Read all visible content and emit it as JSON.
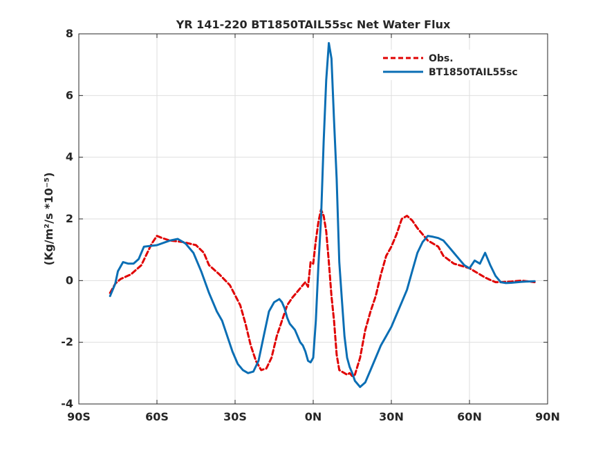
{
  "chart_data": {
    "type": "line",
    "title": "YR 141-220 BT1850TAIL55sc  Net Water Flux",
    "ylabel": "(Kg/m²/s *10⁻⁵)",
    "xlim": [
      -90,
      90
    ],
    "ylim": [
      -4,
      8
    ],
    "x_ticks": [
      -90,
      -60,
      -30,
      0,
      30,
      60,
      90
    ],
    "x_tick_labels": [
      "90S",
      "60S",
      "30S",
      "0N",
      "30N",
      "60N",
      "90N"
    ],
    "y_ticks": [
      -4,
      -2,
      0,
      2,
      4,
      6,
      8
    ],
    "y_tick_labels": [
      "-4",
      "-2",
      "0",
      "2",
      "4",
      "6",
      "8"
    ],
    "grid": true,
    "legend_position": "top-right",
    "series": [
      {
        "name": "Obs.",
        "color": "#e00000",
        "style": "dashed",
        "x": [
          -78,
          -76,
          -74,
          -70,
          -66,
          -62,
          -60,
          -58,
          -55,
          -50,
          -45,
          -42,
          -40,
          -36,
          -32,
          -28,
          -26,
          -24,
          -22,
          -20,
          -18,
          -16,
          -14,
          -12,
          -10,
          -8,
          -6,
          -4,
          -3,
          -2,
          -1,
          0,
          1,
          2,
          3,
          4,
          5,
          6,
          7,
          8,
          9,
          10,
          11,
          12,
          13,
          14,
          15,
          16,
          18,
          20,
          22,
          24,
          26,
          28,
          30,
          32,
          34,
          36,
          38,
          40,
          42,
          44,
          46,
          48,
          50,
          54,
          58,
          60,
          62,
          64,
          66,
          68,
          70,
          72,
          74,
          76,
          80,
          85
        ],
        "y": [
          -0.4,
          -0.1,
          0.05,
          0.2,
          0.5,
          1.2,
          1.45,
          1.38,
          1.3,
          1.25,
          1.15,
          0.9,
          0.5,
          0.2,
          -0.15,
          -0.8,
          -1.4,
          -2.1,
          -2.6,
          -2.9,
          -2.85,
          -2.5,
          -1.8,
          -1.3,
          -0.8,
          -0.55,
          -0.35,
          -0.15,
          -0.05,
          -0.2,
          0.6,
          0.55,
          1.3,
          1.9,
          2.3,
          2.1,
          1.6,
          0.6,
          -0.5,
          -1.3,
          -2.4,
          -2.9,
          -2.95,
          -3.0,
          -3.05,
          -3.0,
          -3.1,
          -3.05,
          -2.5,
          -1.6,
          -1.0,
          -0.5,
          0.2,
          0.8,
          1.1,
          1.5,
          2.0,
          2.1,
          1.95,
          1.7,
          1.5,
          1.3,
          1.2,
          1.1,
          0.8,
          0.55,
          0.45,
          0.4,
          0.3,
          0.2,
          0.1,
          0.02,
          -0.05,
          -0.05,
          -0.04,
          -0.03,
          0.0,
          -0.05
        ]
      },
      {
        "name": "BT1850TAIL55sc",
        "color": "#0a6eb4",
        "style": "solid",
        "x": [
          -78,
          -76,
          -75,
          -73,
          -71,
          -69,
          -67,
          -65,
          -60,
          -55,
          -52,
          -49,
          -46,
          -43,
          -40,
          -37,
          -35,
          -33,
          -31,
          -29,
          -27,
          -25,
          -23,
          -21,
          -19,
          -17,
          -15,
          -13,
          -12,
          -11,
          -10,
          -9,
          -8,
          -7,
          -6,
          -5,
          -4,
          -3,
          -2,
          -1,
          0,
          1,
          2,
          3,
          4,
          5,
          6,
          7,
          8,
          9,
          10,
          11,
          12,
          13,
          14,
          15,
          16,
          18,
          20,
          22,
          24,
          26,
          28,
          30,
          32,
          34,
          36,
          38,
          40,
          42,
          44,
          46,
          48,
          50,
          52,
          54,
          56,
          58,
          60,
          62,
          64,
          66,
          68,
          70,
          72,
          74,
          76,
          80,
          85
        ],
        "y": [
          -0.5,
          -0.1,
          0.3,
          0.6,
          0.55,
          0.55,
          0.7,
          1.1,
          1.15,
          1.3,
          1.35,
          1.2,
          0.9,
          0.3,
          -0.4,
          -1.0,
          -1.3,
          -1.8,
          -2.3,
          -2.7,
          -2.9,
          -3.0,
          -2.95,
          -2.6,
          -1.8,
          -1.0,
          -0.7,
          -0.6,
          -0.7,
          -0.9,
          -1.2,
          -1.4,
          -1.5,
          -1.6,
          -1.8,
          -2.0,
          -2.1,
          -2.3,
          -2.6,
          -2.65,
          -2.5,
          -1.3,
          0.5,
          2.0,
          4.5,
          6.5,
          7.7,
          7.2,
          5.2,
          3.3,
          0.6,
          -0.6,
          -1.8,
          -2.5,
          -2.8,
          -3.0,
          -3.25,
          -3.45,
          -3.3,
          -2.9,
          -2.5,
          -2.1,
          -1.8,
          -1.5,
          -1.1,
          -0.7,
          -0.3,
          0.3,
          0.9,
          1.25,
          1.45,
          1.42,
          1.38,
          1.3,
          1.1,
          0.9,
          0.7,
          0.5,
          0.4,
          0.65,
          0.55,
          0.9,
          0.5,
          0.15,
          -0.05,
          -0.08,
          -0.07,
          -0.04,
          -0.02
        ]
      }
    ]
  }
}
